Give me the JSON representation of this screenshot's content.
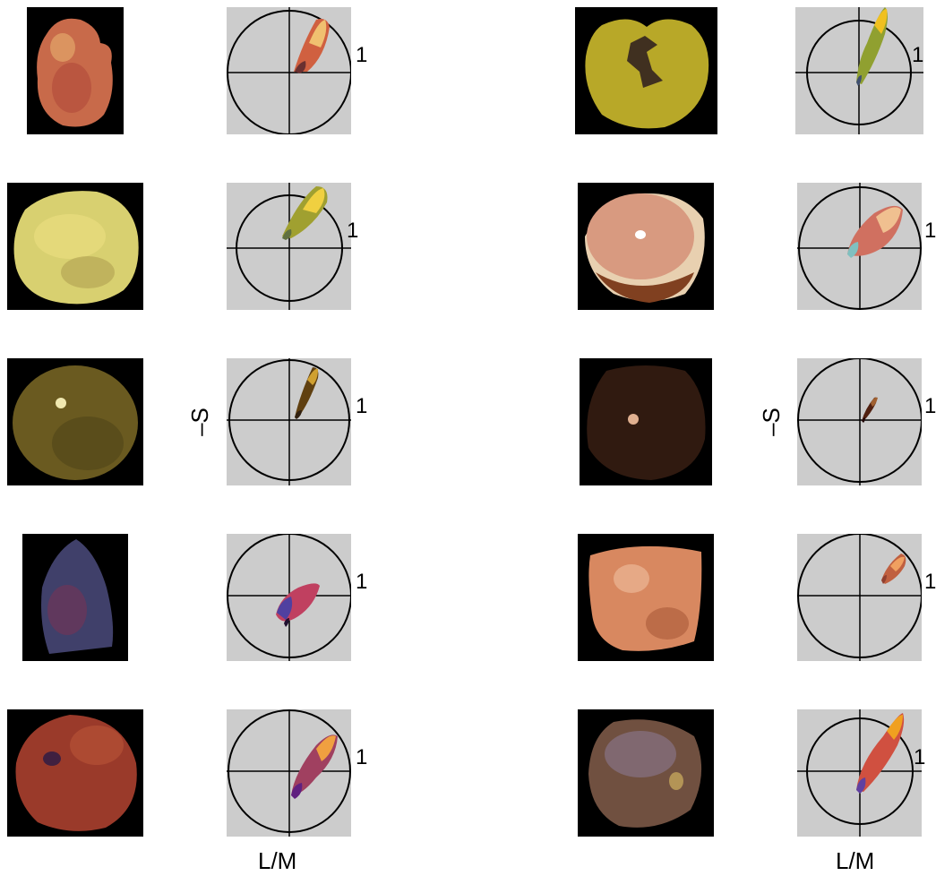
{
  "figure": {
    "axis_label_y": "–S",
    "axis_label_x": "L/M",
    "unit_circle_label": "1",
    "panels": [
      {
        "fruit_color": "#c86a4a",
        "cloud_colors": [
          "#f0c070",
          "#d06040",
          "#6a3030"
        ]
      },
      {
        "fruit_color": "#d8d070",
        "cloud_colors": [
          "#f0d040",
          "#a0a030",
          "#607040"
        ]
      },
      {
        "fruit_color": "#6a5a20",
        "cloud_colors": [
          "#d0a030",
          "#604010",
          "#302010"
        ]
      },
      {
        "fruit_color": "#40406a",
        "cloud_colors": [
          "#c04060",
          "#5040a0",
          "#201030"
        ]
      },
      {
        "fruit_color": "#9a3a2a",
        "cloud_colors": [
          "#f0a040",
          "#a04060",
          "#602080"
        ]
      },
      {
        "fruit_color": "#b8a828",
        "cloud_colors": [
          "#f0c020",
          "#90a030",
          "#405070"
        ]
      },
      {
        "fruit_color": "#d89a80",
        "cloud_colors": [
          "#f0c090",
          "#d07060",
          "#80c0c0"
        ]
      },
      {
        "fruit_color": "#301a10",
        "cloud_colors": [
          "#a06030",
          "#502010",
          "#200808"
        ]
      },
      {
        "fruit_color": "#d88860",
        "cloud_colors": [
          "#f0a060",
          "#c06040",
          "#904030"
        ]
      },
      {
        "fruit_color": "#705040",
        "cloud_colors": [
          "#f0a020",
          "#d05040",
          "#6040a0"
        ]
      }
    ]
  }
}
